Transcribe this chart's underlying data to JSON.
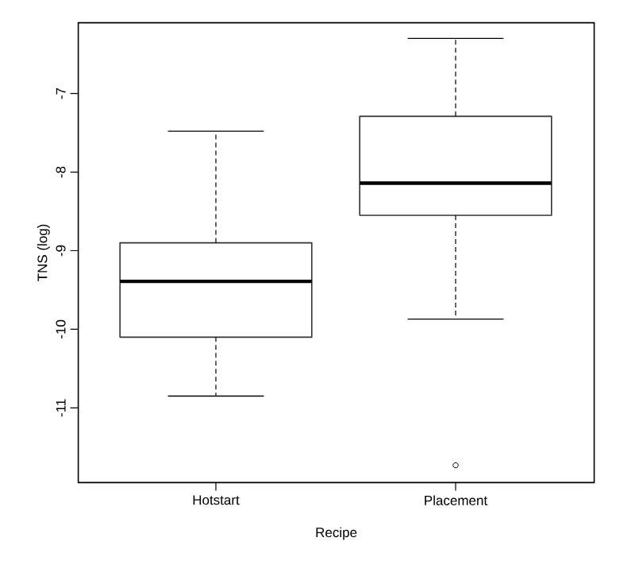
{
  "chart_data": {
    "type": "box",
    "xlabel": "Recipe",
    "ylabel": "TNS (log)",
    "categories": [
      "Hotstart",
      "Placement"
    ],
    "boxes": [
      {
        "low": -10.85,
        "q1": -10.1,
        "median": -9.39,
        "q3": -8.9,
        "high": -7.48
      },
      {
        "low": -9.87,
        "q1": -8.55,
        "median": -8.14,
        "q3": -7.29,
        "high": -6.3,
        "outliers": [
          -11.73
        ]
      }
    ],
    "ylim": [
      -11.95,
      -6.1
    ],
    "yticks": [
      -7,
      -8,
      -9,
      -10,
      -11
    ]
  }
}
